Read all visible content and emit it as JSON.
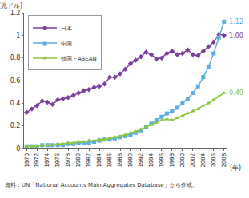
{
  "chart_data": {
    "type": "line",
    "ylabel": "(兆ドル)",
    "xlabel": "(年)",
    "source": "資料：UN「National Accounts Main Aggregates Database」から作成。",
    "x": [
      1970,
      1971,
      1972,
      1973,
      1974,
      1975,
      1976,
      1977,
      1978,
      1979,
      1980,
      1981,
      1982,
      1983,
      1984,
      1985,
      1986,
      1987,
      1988,
      1989,
      1990,
      1991,
      1992,
      1993,
      1994,
      1995,
      1996,
      1997,
      1998,
      1999,
      2000,
      2001,
      2002,
      2003,
      2004,
      2005,
      2006,
      2007,
      2008
    ],
    "series": [
      {
        "name": "日本",
        "color": "#7b3f9e",
        "marker": "diamond",
        "values": [
          0.32,
          0.35,
          0.38,
          0.42,
          0.41,
          0.39,
          0.43,
          0.44,
          0.45,
          0.47,
          0.49,
          0.51,
          0.52,
          0.54,
          0.55,
          0.57,
          0.63,
          0.63,
          0.66,
          0.7,
          0.75,
          0.78,
          0.81,
          0.85,
          0.83,
          0.79,
          0.8,
          0.84,
          0.86,
          0.83,
          0.84,
          0.87,
          0.83,
          0.82,
          0.86,
          0.9,
          0.94,
          1.01,
          1.0
        ]
      },
      {
        "name": "中国",
        "color": "#5aaee0",
        "marker": "square",
        "values": [
          0.02,
          0.02,
          0.02,
          0.03,
          0.03,
          0.03,
          0.03,
          0.03,
          0.04,
          0.04,
          0.05,
          0.05,
          0.05,
          0.06,
          0.07,
          0.08,
          0.08,
          0.09,
          0.1,
          0.11,
          0.12,
          0.14,
          0.16,
          0.19,
          0.22,
          0.25,
          0.28,
          0.31,
          0.33,
          0.36,
          0.4,
          0.44,
          0.49,
          0.55,
          0.63,
          0.72,
          0.84,
          0.98,
          1.12
        ]
      },
      {
        "name": "韓国・ASEAN",
        "color": "#8cc63f",
        "marker": "triangle-up",
        "values": [
          0.02,
          0.02,
          0.02,
          0.03,
          0.03,
          0.03,
          0.04,
          0.04,
          0.05,
          0.05,
          0.06,
          0.06,
          0.07,
          0.07,
          0.08,
          0.08,
          0.09,
          0.1,
          0.11,
          0.12,
          0.14,
          0.15,
          0.17,
          0.19,
          0.21,
          0.23,
          0.25,
          0.26,
          0.25,
          0.27,
          0.29,
          0.31,
          0.33,
          0.35,
          0.38,
          0.4,
          0.43,
          0.46,
          0.49
        ]
      }
    ],
    "annotations": [
      {
        "text": "1.12",
        "x": 2008,
        "y": 1.12,
        "color": "#5aaee0"
      },
      {
        "text": "1.00",
        "x": 2008,
        "y": 1.0,
        "color": "#7b3f9e"
      },
      {
        "text": "0.49",
        "x": 2008,
        "y": 0.49,
        "color": "#8cc63f"
      }
    ],
    "xlim": [
      1969.5,
      2008.5
    ],
    "xticks": [
      1970,
      1972,
      1974,
      1976,
      1978,
      1980,
      1982,
      1984,
      1986,
      1988,
      1990,
      1992,
      1994,
      1996,
      1998,
      2000,
      2002,
      2004,
      2006,
      2008
    ],
    "ylim": [
      0,
      1.2
    ],
    "yticks": [
      0,
      0.2,
      0.4,
      0.6,
      0.8,
      1,
      1.2
    ],
    "grid": false,
    "legend": "top-left"
  }
}
